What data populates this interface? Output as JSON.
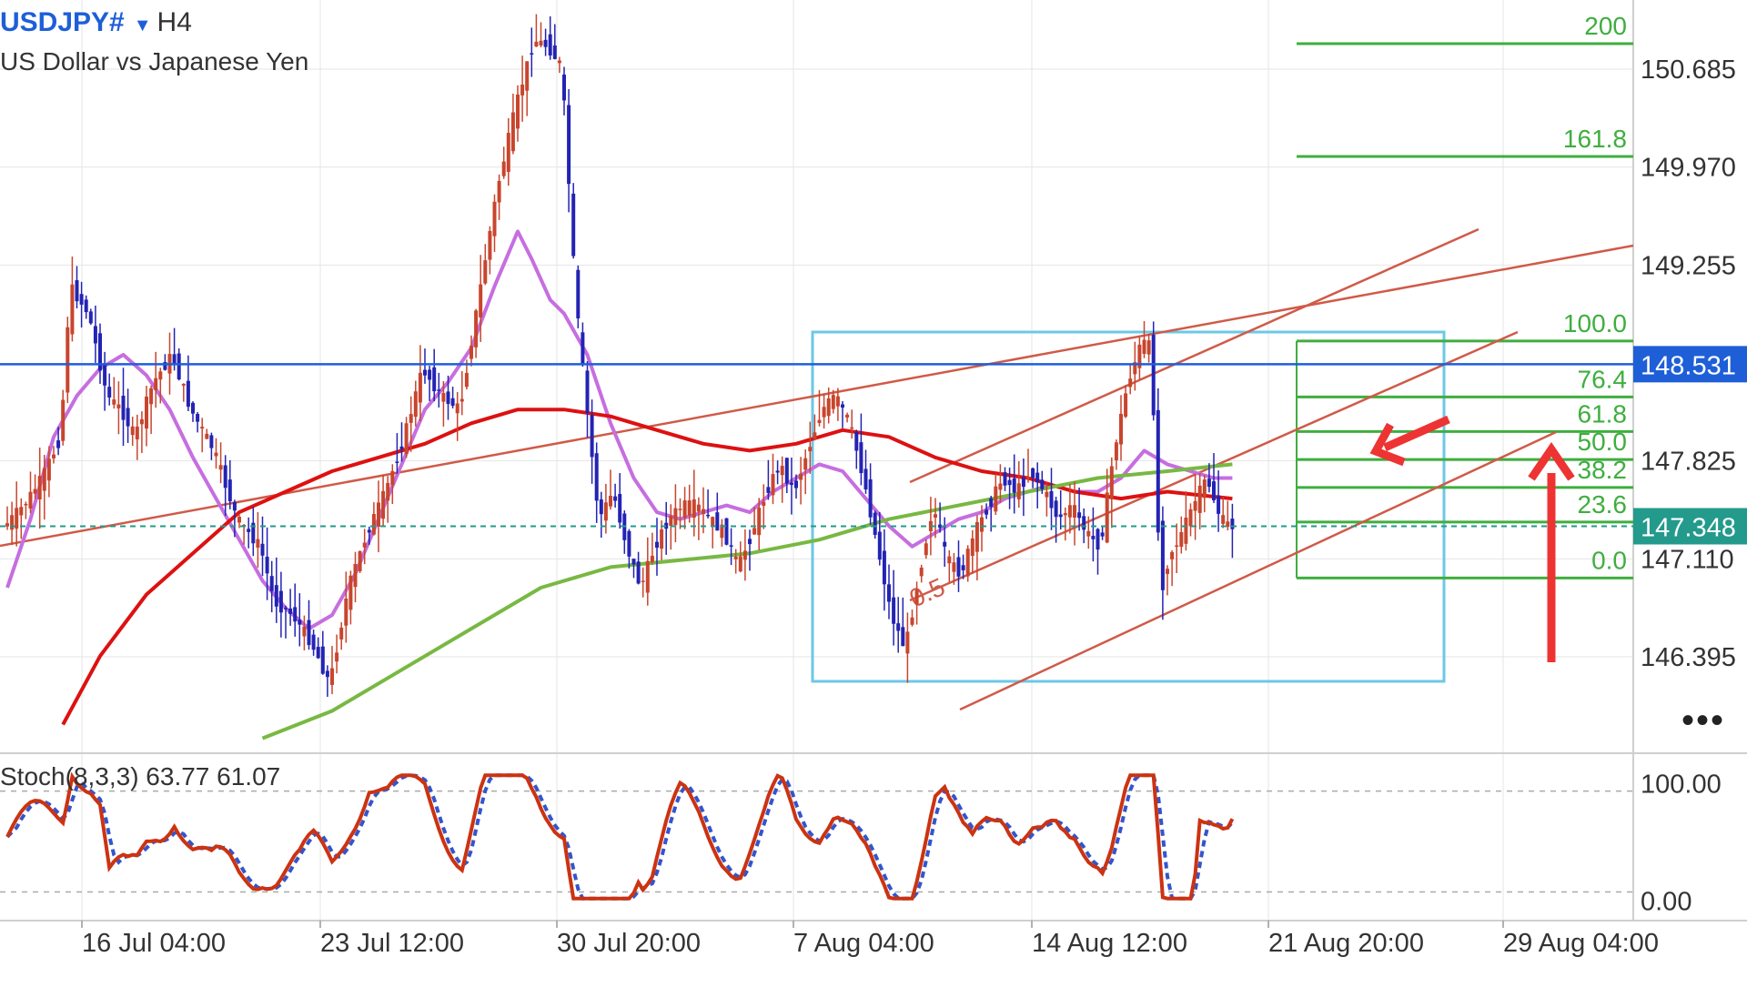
{
  "header": {
    "symbol": "USDJPY#",
    "dropdown_icon": "triangle-down-icon",
    "timeframe": "H4",
    "description": "US Dollar vs Japanese Yen"
  },
  "price_axis": {
    "ticks": [
      "150.685",
      "149.970",
      "149.255",
      "147.825",
      "147.110",
      "146.395"
    ],
    "price_lines": [
      {
        "label": "148.531",
        "value": 148.531,
        "color": "#1e5fd8"
      },
      {
        "label": "147.348",
        "value": 147.348,
        "color": "#239a8c"
      }
    ]
  },
  "time_axis": {
    "labels": [
      "16 Jul 04:00",
      "23 Jul 12:00",
      "30 Jul 20:00",
      "7 Aug 04:00",
      "14 Aug 12:00",
      "21 Aug 20:00",
      "29 Aug 04:00"
    ]
  },
  "fibonacci": {
    "levels": [
      {
        "label": "200",
        "value": 200.0
      },
      {
        "label": "161.8",
        "value": 161.8
      },
      {
        "label": "100.0",
        "value": 100.0
      },
      {
        "label": "76.4",
        "value": 76.4
      },
      {
        "label": "61.8",
        "value": 61.8
      },
      {
        "label": "50.0",
        "value": 50.0
      },
      {
        "label": "38.2",
        "value": 38.2
      },
      {
        "label": "23.6",
        "value": 23.6
      },
      {
        "label": "0.0",
        "value": 0.0
      }
    ],
    "color": "#3fae3f"
  },
  "annotations": {
    "channel_midline_label": "0.5"
  },
  "stochastic": {
    "label": "Stoch(8,3,3) 63.77 61.07",
    "k_value": 63.77,
    "d_value": 61.07,
    "ticks": [
      "100.00",
      "0.00"
    ]
  },
  "more_menu": "•••",
  "colors": {
    "bull_candle": "#c8452d",
    "bear_candle": "#2323b4",
    "ma_fast": "#c66ee0",
    "ma_mid": "#dd1111",
    "ma_slow": "#78b843",
    "channel": "#d05a48",
    "box": "#6cc8e6",
    "fib": "#3fae3f",
    "arrows": "#ee3333",
    "stoch_k": "#cc3311",
    "stoch_d": "#3355cc"
  },
  "chart_data": {
    "type": "candlestick",
    "symbol": "USDJPY#",
    "timeframe": "H4",
    "ylim": [
      145.75,
      151.5
    ],
    "x_ticks": [
      "16 Jul 04:00",
      "23 Jul 12:00",
      "30 Jul 20:00",
      "7 Aug 04:00",
      "14 Aug 12:00",
      "21 Aug 20:00",
      "29 Aug 04:00"
    ],
    "price_path": [
      [
        0,
        147.35
      ],
      [
        4,
        147.5
      ],
      [
        8,
        147.7
      ],
      [
        12,
        148.0
      ],
      [
        14,
        149.1
      ],
      [
        18,
        148.9
      ],
      [
        22,
        148.3
      ],
      [
        25,
        148.2
      ],
      [
        28,
        148.0
      ],
      [
        32,
        148.4
      ],
      [
        36,
        148.6
      ],
      [
        40,
        148.2
      ],
      [
        45,
        147.9
      ],
      [
        50,
        147.4
      ],
      [
        55,
        147.2
      ],
      [
        58,
        146.8
      ],
      [
        62,
        146.7
      ],
      [
        66,
        146.5
      ],
      [
        70,
        146.2
      ],
      [
        74,
        146.9
      ],
      [
        78,
        147.3
      ],
      [
        82,
        147.6
      ],
      [
        86,
        148.0
      ],
      [
        90,
        148.5
      ],
      [
        94,
        148.3
      ],
      [
        98,
        148.2
      ],
      [
        102,
        149.0
      ],
      [
        106,
        149.8
      ],
      [
        110,
        150.4
      ],
      [
        114,
        150.9
      ],
      [
        117,
        150.85
      ],
      [
        120,
        150.7
      ],
      [
        123,
        149.0
      ],
      [
        126,
        148.0
      ],
      [
        128,
        147.4
      ],
      [
        131,
        147.6
      ],
      [
        134,
        147.2
      ],
      [
        137,
        146.9
      ],
      [
        140,
        147.2
      ],
      [
        143,
        147.4
      ],
      [
        146,
        147.5
      ],
      [
        149,
        147.5
      ],
      [
        152,
        147.4
      ],
      [
        155,
        147.3
      ],
      [
        158,
        147.05
      ],
      [
        161,
        147.3
      ],
      [
        164,
        147.6
      ],
      [
        167,
        147.8
      ],
      [
        170,
        147.6
      ],
      [
        173,
        147.9
      ],
      [
        176,
        148.2
      ],
      [
        179,
        148.3
      ],
      [
        182,
        148.1
      ],
      [
        185,
        147.7
      ],
      [
        188,
        147.2
      ],
      [
        191,
        146.7
      ],
      [
        194,
        146.45
      ],
      [
        197,
        147.0
      ],
      [
        200,
        147.5
      ],
      [
        203,
        147.1
      ],
      [
        206,
        147.0
      ],
      [
        209,
        147.3
      ],
      [
        212,
        147.5
      ],
      [
        215,
        147.7
      ],
      [
        218,
        147.6
      ],
      [
        221,
        147.75
      ],
      [
        224,
        147.6
      ],
      [
        227,
        147.4
      ],
      [
        230,
        147.5
      ],
      [
        233,
        147.3
      ],
      [
        236,
        147.2
      ],
      [
        239,
        147.9
      ],
      [
        242,
        148.4
      ],
      [
        245,
        148.7
      ],
      [
        247,
        148.65
      ],
      [
        249,
        146.85
      ],
      [
        251,
        147.15
      ],
      [
        253,
        147.25
      ],
      [
        256,
        147.5
      ],
      [
        259,
        147.7
      ],
      [
        262,
        147.4
      ],
      [
        264,
        147.348
      ]
    ],
    "series": [
      {
        "name": "MA fast",
        "values": [
          [
            0,
            146.9
          ],
          [
            5,
            147.4
          ],
          [
            10,
            148.0
          ],
          [
            15,
            148.3
          ],
          [
            20,
            148.5
          ],
          [
            25,
            148.6
          ],
          [
            30,
            148.45
          ],
          [
            35,
            148.2
          ],
          [
            40,
            147.85
          ],
          [
            45,
            147.55
          ],
          [
            50,
            147.25
          ],
          [
            55,
            146.95
          ],
          [
            60,
            146.75
          ],
          [
            65,
            146.6
          ],
          [
            70,
            146.7
          ],
          [
            75,
            147.0
          ],
          [
            80,
            147.4
          ],
          [
            85,
            147.8
          ],
          [
            90,
            148.2
          ],
          [
            95,
            148.4
          ],
          [
            100,
            148.65
          ],
          [
            105,
            149.1
          ],
          [
            110,
            149.5
          ],
          [
            113,
            149.3
          ],
          [
            117,
            149.0
          ],
          [
            120,
            148.9
          ],
          [
            125,
            148.6
          ],
          [
            130,
            148.1
          ],
          [
            135,
            147.7
          ],
          [
            140,
            147.45
          ],
          [
            145,
            147.4
          ],
          [
            150,
            147.45
          ],
          [
            155,
            147.5
          ],
          [
            160,
            147.45
          ],
          [
            165,
            147.6
          ],
          [
            170,
            147.7
          ],
          [
            175,
            147.8
          ],
          [
            180,
            147.75
          ],
          [
            185,
            147.55
          ],
          [
            190,
            147.35
          ],
          [
            195,
            147.2
          ],
          [
            200,
            147.3
          ],
          [
            205,
            147.4
          ],
          [
            210,
            147.45
          ],
          [
            215,
            147.55
          ],
          [
            220,
            147.6
          ],
          [
            225,
            147.65
          ],
          [
            230,
            147.6
          ],
          [
            235,
            147.6
          ],
          [
            240,
            147.7
          ],
          [
            245,
            147.9
          ],
          [
            250,
            147.8
          ],
          [
            255,
            147.75
          ],
          [
            260,
            147.7
          ],
          [
            264,
            147.7
          ]
        ]
      },
      {
        "name": "MA mid",
        "values": [
          [
            12,
            145.9
          ],
          [
            20,
            146.4
          ],
          [
            30,
            146.85
          ],
          [
            40,
            147.15
          ],
          [
            50,
            147.45
          ],
          [
            60,
            147.6
          ],
          [
            70,
            147.75
          ],
          [
            80,
            147.85
          ],
          [
            90,
            147.95
          ],
          [
            100,
            148.1
          ],
          [
            110,
            148.2
          ],
          [
            120,
            148.2
          ],
          [
            130,
            148.15
          ],
          [
            140,
            148.05
          ],
          [
            150,
            147.95
          ],
          [
            160,
            147.9
          ],
          [
            170,
            147.95
          ],
          [
            180,
            148.05
          ],
          [
            190,
            148.0
          ],
          [
            200,
            147.85
          ],
          [
            210,
            147.75
          ],
          [
            220,
            147.7
          ],
          [
            230,
            147.6
          ],
          [
            240,
            147.55
          ],
          [
            250,
            147.6
          ],
          [
            264,
            147.55
          ]
        ]
      },
      {
        "name": "MA slow",
        "values": [
          [
            55,
            145.8
          ],
          [
            70,
            146.0
          ],
          [
            85,
            146.3
          ],
          [
            100,
            146.6
          ],
          [
            115,
            146.9
          ],
          [
            130,
            147.05
          ],
          [
            145,
            147.1
          ],
          [
            160,
            147.15
          ],
          [
            175,
            147.25
          ],
          [
            190,
            147.4
          ],
          [
            205,
            147.5
          ],
          [
            220,
            147.6
          ],
          [
            235,
            147.7
          ],
          [
            250,
            147.75
          ],
          [
            264,
            147.8
          ]
        ]
      }
    ],
    "horizontal_lines": [
      148.531,
      147.348
    ],
    "fib_levels": [
      200,
      161.8,
      100.0,
      76.4,
      61.8,
      50.0,
      38.2,
      23.6,
      0.0
    ],
    "stochastic": {
      "name": "Stoch(8,3,3)",
      "k": 63.77,
      "d": 61.07,
      "range": [
        0,
        100
      ]
    }
  }
}
